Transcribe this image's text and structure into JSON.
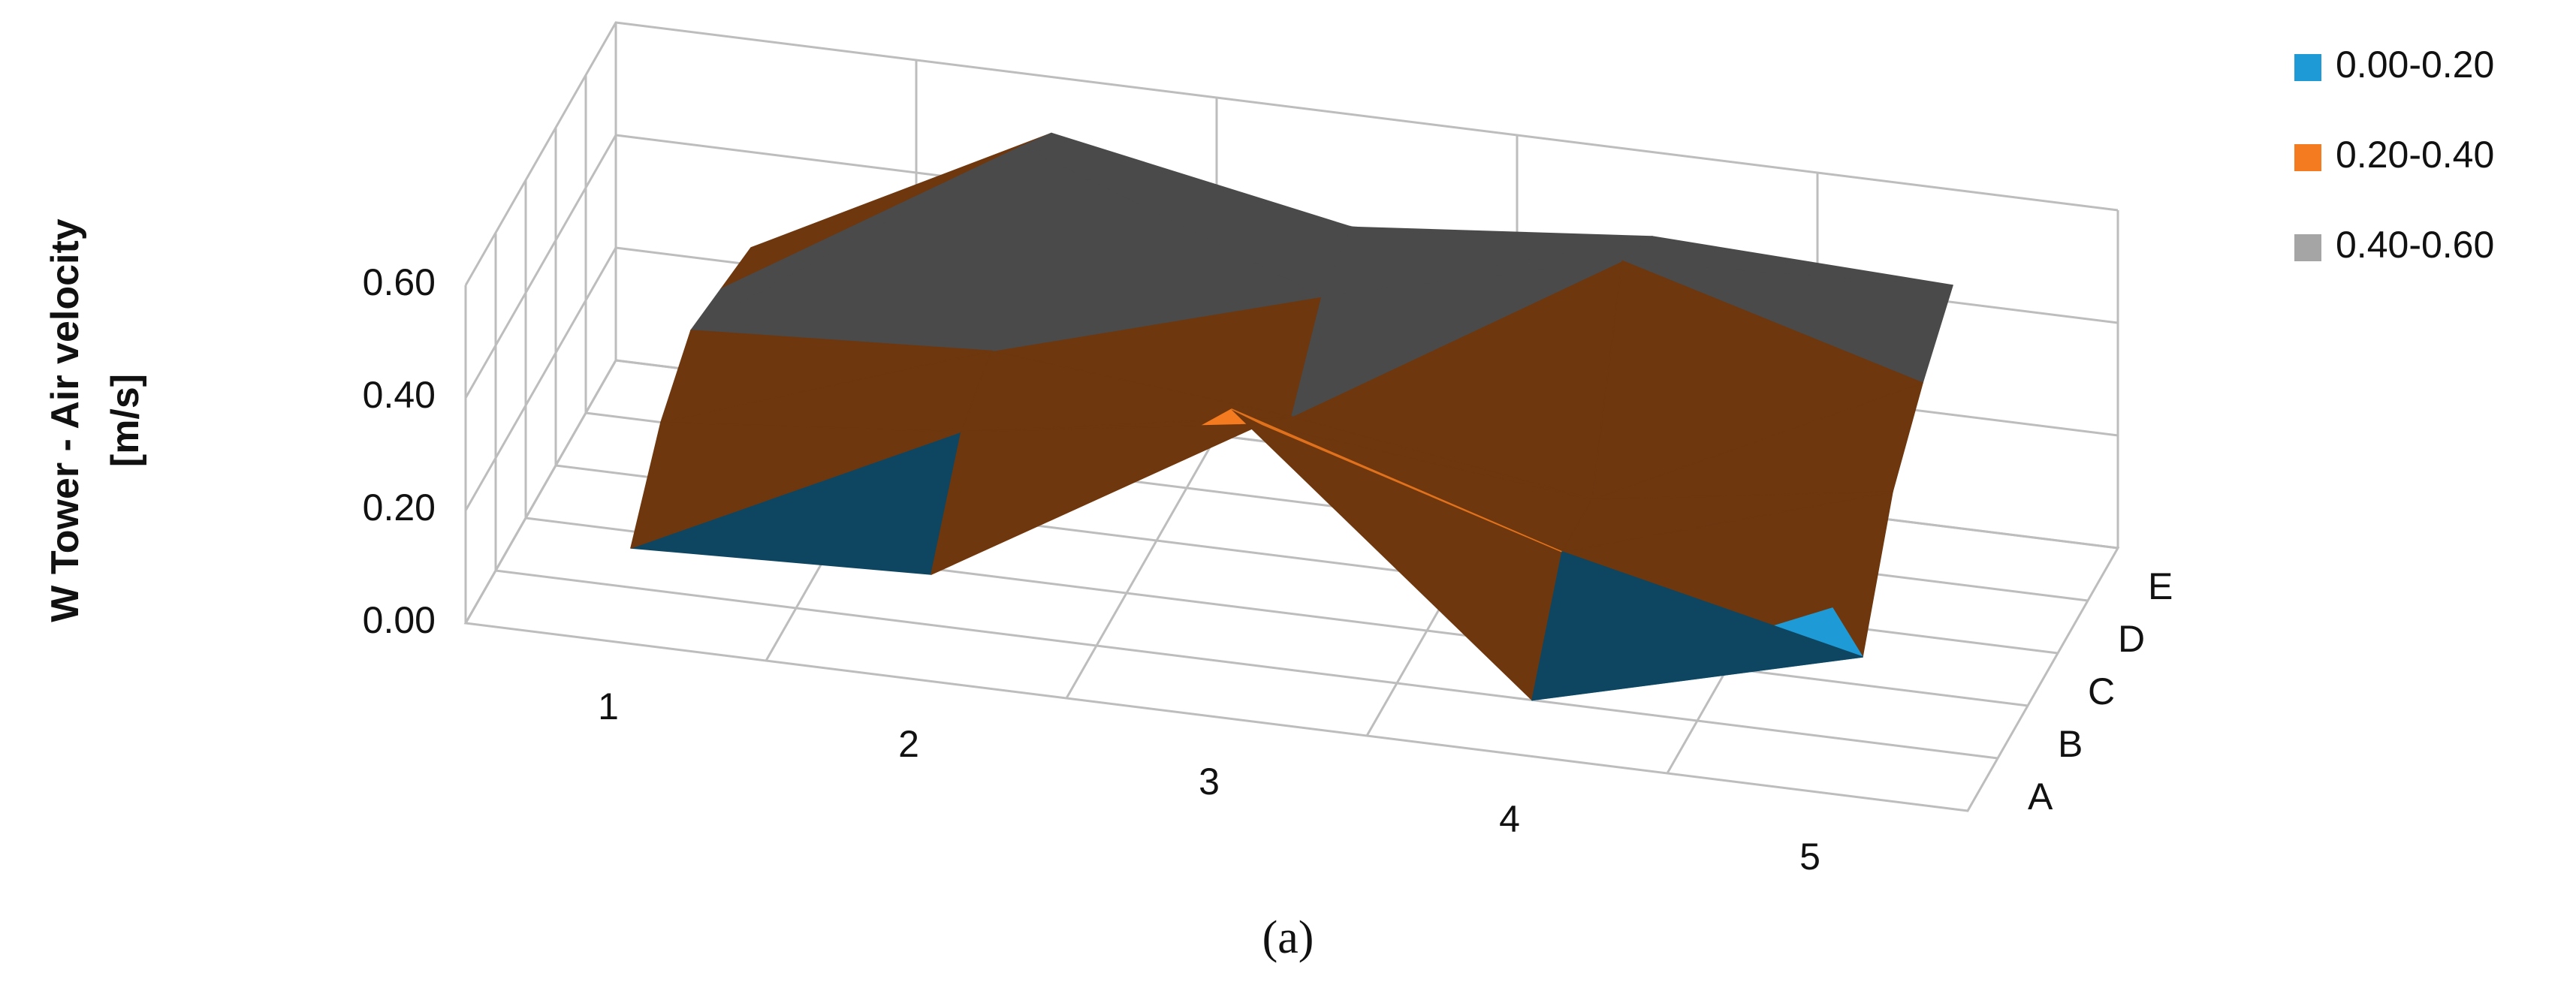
{
  "chart_data": {
    "type": "surface",
    "ylabel": [
      "W Tower - Air velocity",
      "[m/s]"
    ],
    "categories": [
      "1",
      "2",
      "3",
      "4",
      "5"
    ],
    "series": [
      {
        "name": "A",
        "values": [
          0.12,
          0.14,
          0.5,
          0.05,
          0.28
        ]
      },
      {
        "name": "B",
        "values": [
          0.25,
          0.3,
          0.38,
          0.22,
          0.1
        ]
      },
      {
        "name": "C",
        "values": [
          0.32,
          0.35,
          0.3,
          0.22,
          0.3
        ]
      },
      {
        "name": "D",
        "values": [
          0.3,
          0.62,
          0.42,
          0.55,
          0.4
        ]
      },
      {
        "name": "E",
        "values": [
          0.28,
          0.55,
          0.45,
          0.5,
          0.48
        ]
      }
    ],
    "ylim": [
      0,
      0.6
    ],
    "yticks": [
      {
        "value": 0,
        "label": "0.00"
      },
      {
        "value": 0.2,
        "label": "0.20"
      },
      {
        "value": 0.4,
        "label": "0.40"
      },
      {
        "value": 0.6,
        "label": "0.60"
      }
    ],
    "legend": [
      {
        "name": "0.00-0.20",
        "color": "#1e9bd7"
      },
      {
        "name": "0.20-0.40",
        "color": "#f47b20"
      },
      {
        "name": "0.40-0.60",
        "color": "#a5a5a5"
      }
    ],
    "grid": true
  },
  "caption": "(a)"
}
